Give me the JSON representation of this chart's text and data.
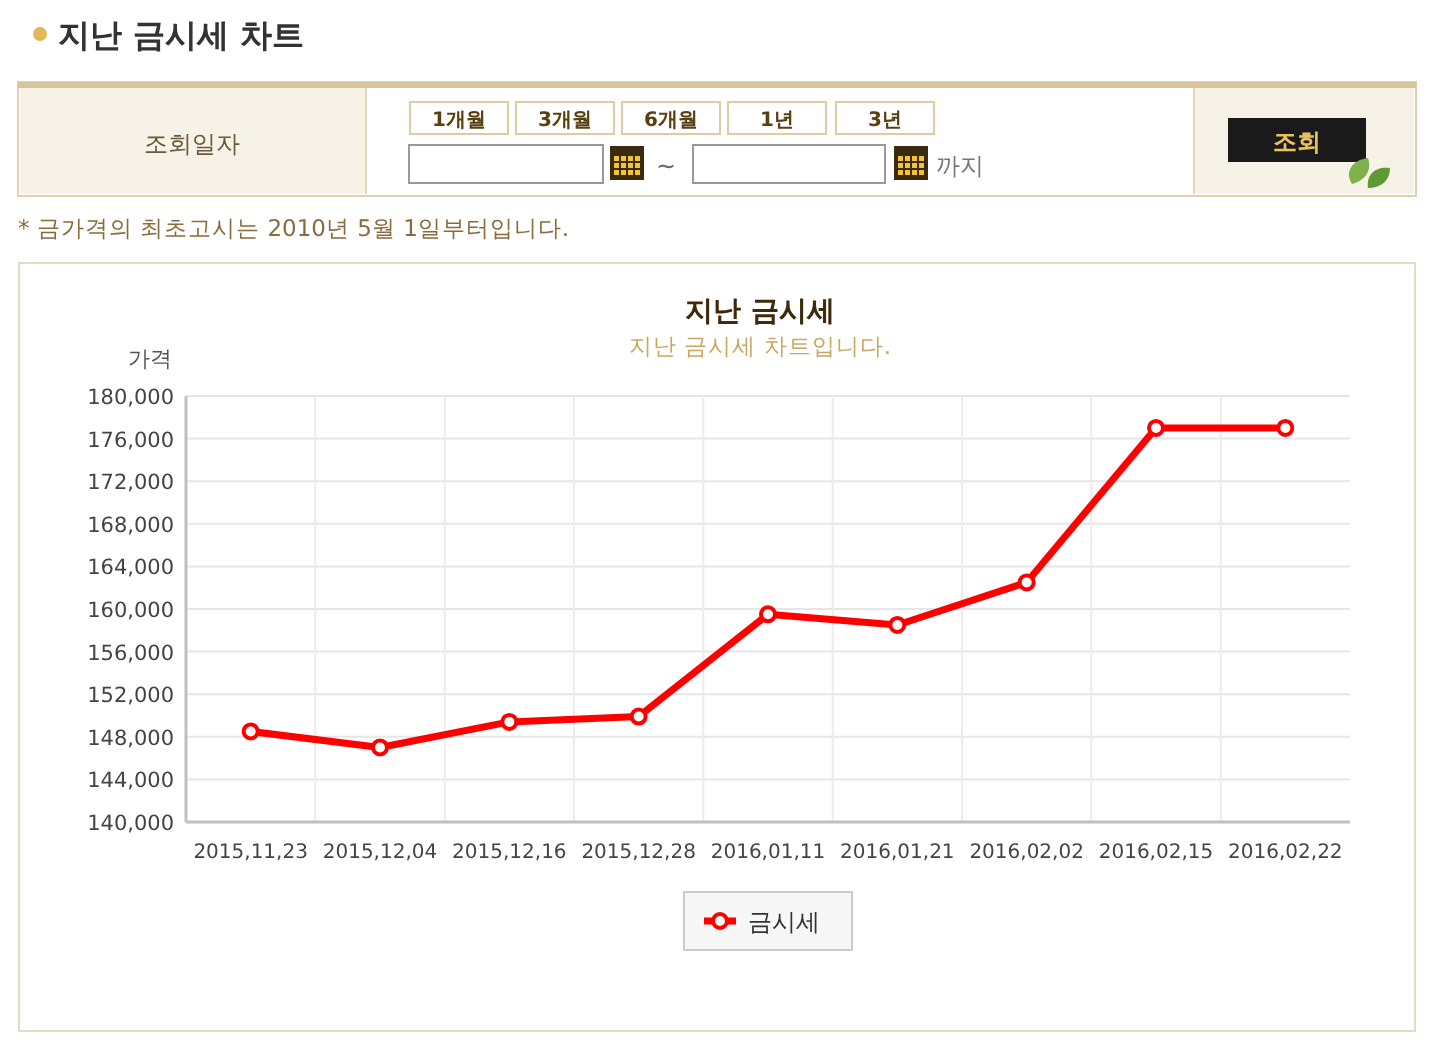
{
  "chart_data": {
    "type": "line",
    "title": "지난 금시세",
    "subtitle": "지난 금시세 차트입니다.",
    "ylabel": "가격",
    "categories": [
      "2015,11,23",
      "2015,12,04",
      "2015,12,16",
      "2015,12,28",
      "2016,01,11",
      "2016,01,21",
      "2016,02,02",
      "2016,02,15",
      "2016,02,22"
    ],
    "series": [
      {
        "name": "금시세",
        "color": "#ff0000",
        "values": [
          148500,
          147000,
          149400,
          149900,
          159500,
          158500,
          162500,
          177000,
          177000
        ]
      }
    ],
    "ylim": [
      140000,
      180000
    ],
    "yticks": [
      {
        "value": 140000,
        "label": "140,000"
      },
      {
        "value": 144000,
        "label": "144,000"
      },
      {
        "value": 148000,
        "label": "148,000"
      },
      {
        "value": 152000,
        "label": "152,000"
      },
      {
        "value": 156000,
        "label": "156,000"
      },
      {
        "value": 160000,
        "label": "160,000"
      },
      {
        "value": 164000,
        "label": "164,000"
      },
      {
        "value": 168000,
        "label": "168,000"
      },
      {
        "value": 172000,
        "label": "172,000"
      },
      {
        "value": 176000,
        "label": "176,000"
      },
      {
        "value": 180000,
        "label": "180,000"
      }
    ],
    "grid": true,
    "legend": "bottom",
    "marker": "circle",
    "line_style": "solid",
    "annotations": [
      "지난 금시세 차트",
      "조회일자",
      "1개월",
      "3개월",
      "6개월",
      "1년",
      "3년",
      "~",
      "까지",
      "조회",
      "* 금가격의 최초고시는 2010년 5월 1일부터입니다."
    ]
  }
}
